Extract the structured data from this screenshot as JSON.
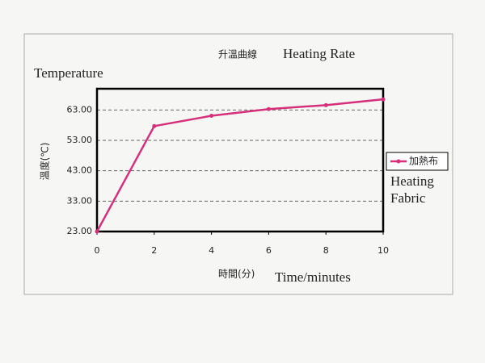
{
  "chart_data": {
    "type": "line",
    "title": "升溫曲線",
    "title_translation": "Heating Rate",
    "y_label": "溫度(℃)",
    "y_label_translation": "Temperature",
    "x_label": "時間(分)",
    "x_label_translation": "Time/minutes",
    "x": [
      0,
      2,
      4,
      6,
      8,
      10
    ],
    "series": [
      {
        "name": "加熱布",
        "name_translation": [
          "Heating",
          "Fabric"
        ],
        "color": "#d4317a",
        "values": [
          23,
          57.7,
          61.1,
          63.3,
          64.6,
          66.5
        ]
      }
    ],
    "xlim": [
      0,
      10
    ],
    "xticks": [
      0,
      2,
      4,
      6,
      8,
      10
    ],
    "ylim": [
      23,
      70
    ],
    "yticks": [
      {
        "value": 23,
        "label": "23.00"
      },
      {
        "value": 33,
        "label": "33.00"
      },
      {
        "value": 43,
        "label": "43.00"
      },
      {
        "value": 53,
        "label": "53.00"
      },
      {
        "value": 63,
        "label": "63.00"
      }
    ],
    "grid": true,
    "legend": "right"
  }
}
